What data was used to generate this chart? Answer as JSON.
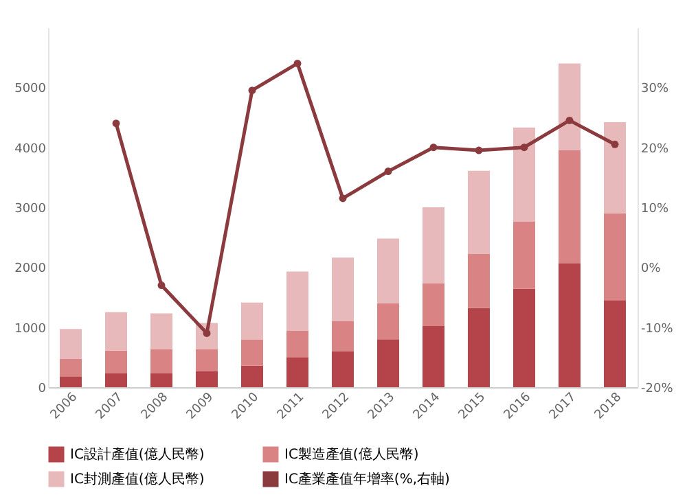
{
  "chart_data": {
    "type": "bar",
    "stacked": true,
    "categories": [
      "2006",
      "2007",
      "2008",
      "2009",
      "2010",
      "2011",
      "2012",
      "2013",
      "2014",
      "2015",
      "2016",
      "2017",
      "2018"
    ],
    "series": [
      {
        "name": "IC設計產值(億人民幣)",
        "color": "#b5444a",
        "values": [
          180,
          230,
          230,
          270,
          360,
          500,
          600,
          800,
          1020,
          1320,
          1640,
          2070,
          1450
        ]
      },
      {
        "name": "IC製造產值(億人民幣)",
        "color": "#d98385",
        "values": [
          290,
          380,
          400,
          360,
          430,
          440,
          500,
          600,
          710,
          900,
          1120,
          1880,
          1450
        ]
      },
      {
        "name": "IC封測產值(億人民幣)",
        "color": "#e8b9ba",
        "values": [
          500,
          640,
          600,
          440,
          620,
          990,
          1060,
          1080,
          1270,
          1390,
          1570,
          1450,
          1520
        ]
      },
      {
        "name": "IC產業產值年增率(%,右軸)",
        "type": "line",
        "axis": "y2",
        "color": "#8b3a3e",
        "marker": "circle",
        "values": [
          null,
          24,
          -3,
          -11,
          29.5,
          34,
          11.5,
          16,
          20,
          19.5,
          20,
          24.5,
          20.5
        ]
      }
    ],
    "ylim": [
      0,
      6000
    ],
    "yticks": [
      0,
      1000,
      2000,
      3000,
      4000,
      5000
    ],
    "y2lim": [
      -20,
      40
    ],
    "y2ticks": [
      {
        "value": -20,
        "label": "-20%"
      },
      {
        "value": -10,
        "label": "-10%"
      },
      {
        "value": 0,
        "label": "0%"
      },
      {
        "value": 10,
        "label": "10%"
      },
      {
        "value": 20,
        "label": "20%"
      },
      {
        "value": 30,
        "label": "30%"
      }
    ],
    "grid": false,
    "legend": "bottom"
  }
}
